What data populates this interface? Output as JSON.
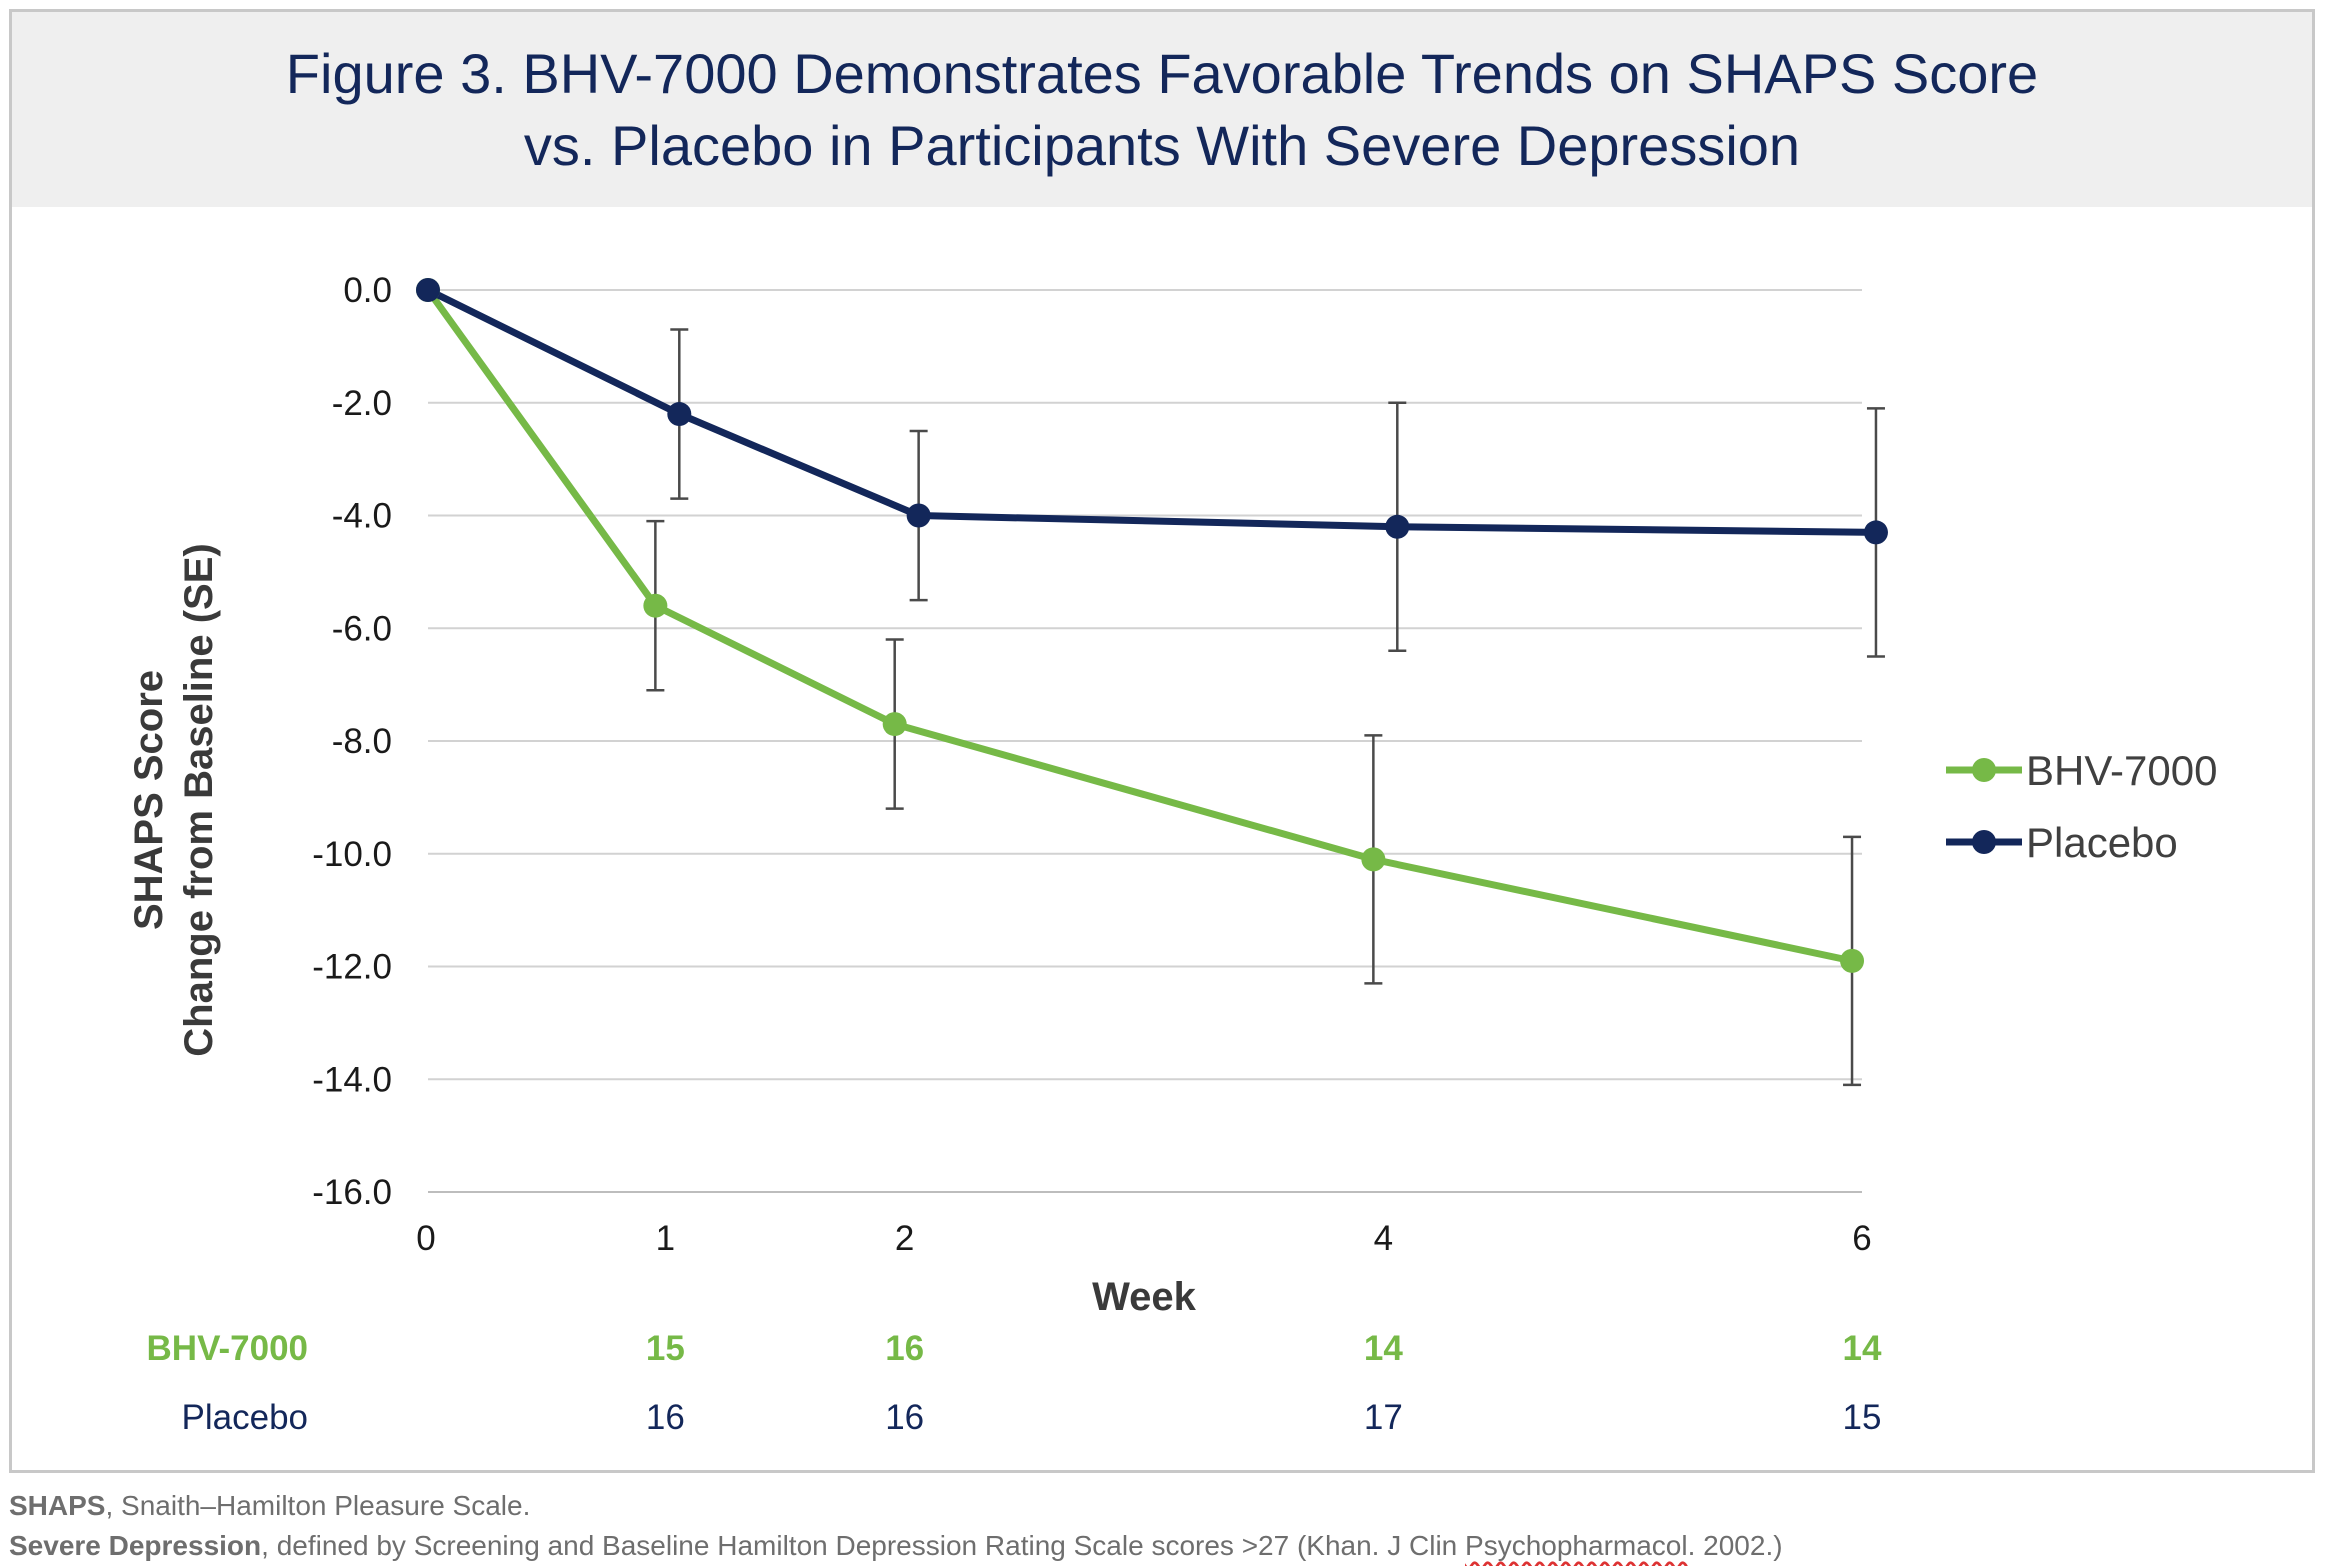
{
  "title": {
    "line1": "Figure 3. BHV-7000 Demonstrates Favorable Trends on SHAPS Score",
    "line2": "vs. Placebo in Participants With Severe Depression"
  },
  "colors": {
    "bhv": "#76b947",
    "placebo": "#13275a",
    "grid": "#d2d2d2",
    "error_bar": "#4a4a4a"
  },
  "chart_data": {
    "type": "line",
    "title": "Figure 3. BHV-7000 Demonstrates Favorable Trends on SHAPS Score vs. Placebo in Participants With Severe Depression",
    "xlabel": "Week",
    "ylabel_line1": "SHAPS Score",
    "ylabel_line2": "Change from Baseline (SE)",
    "xlim": [
      0,
      6
    ],
    "ylim": [
      -16,
      0
    ],
    "y_ticks": [
      0,
      -2,
      -4,
      -6,
      -8,
      -10,
      -12,
      -14,
      -16
    ],
    "y_tick_labels": [
      "0.0",
      "-2.0",
      "-4.0",
      "-6.0",
      "-8.0",
      "-10.0",
      "-12.0",
      "-14.0",
      "-16.0"
    ],
    "x_ticks": [
      0,
      1,
      2,
      4,
      6
    ],
    "x_tick_labels": [
      "0",
      "1",
      "2",
      "4",
      "6"
    ],
    "grid": true,
    "legend_position": "right",
    "series": [
      {
        "name": "BHV-7000",
        "color": "#76b947",
        "x": [
          0,
          0.95,
          1.95,
          3.95,
          5.95
        ],
        "y": [
          0,
          -5.6,
          -7.7,
          -10.1,
          -11.9
        ],
        "se": [
          0,
          1.5,
          1.5,
          2.2,
          2.2
        ]
      },
      {
        "name": "Placebo",
        "color": "#13275a",
        "x": [
          0,
          1.05,
          2.05,
          4.05,
          6.05
        ],
        "y": [
          0,
          -2.2,
          -4.0,
          -4.2,
          -4.3
        ],
        "se": [
          0,
          1.5,
          1.5,
          2.2,
          2.2
        ]
      }
    ],
    "n_table": {
      "weeks": [
        "1",
        "2",
        "4",
        "6"
      ],
      "rows": [
        {
          "label": "BHV-7000",
          "values": [
            "15",
            "16",
            "14",
            "14"
          ]
        },
        {
          "label": "Placebo",
          "values": [
            "16",
            "16",
            "17",
            "15"
          ]
        }
      ]
    }
  },
  "footnotes": {
    "line1_term": "SHAPS",
    "line1_text": ", Snaith–Hamilton Pleasure Scale.",
    "line2_term": "Severe Depression",
    "line2_text_a": ", defined by Screening and Baseline Hamilton Depression Rating Scale scores >27 (Khan. J Clin ",
    "line2_text_b": "Psychopharmacol",
    "line2_text_c": ". 2002.)"
  }
}
